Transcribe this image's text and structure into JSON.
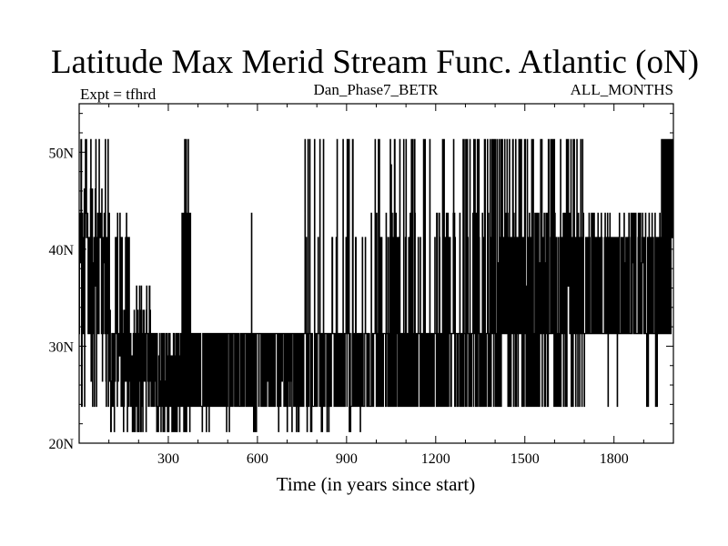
{
  "chart_data": {
    "type": "line",
    "title": "Latitude Max Merid Stream Func. Atlantic (oN)",
    "left_annotation": "Expt = tfhrd",
    "center_annotation": "Dan_Phase7_BETR",
    "right_annotation": "ALL_MONTHS",
    "xlabel": "Time (in years since start)",
    "ylabel": "",
    "xlim": [
      0,
      2000
    ],
    "ylim": [
      20,
      55
    ],
    "x_ticks": [
      300,
      600,
      900,
      1200,
      1500,
      1800
    ],
    "x_tick_labels": [
      "300",
      "600",
      "900",
      "1200",
      "1500",
      "1800"
    ],
    "y_ticks": [
      20,
      30,
      40,
      50
    ],
    "y_tick_labels": [
      "20N",
      "30N",
      "40N",
      "50N"
    ],
    "grid": false,
    "series": [
      {
        "name": "",
        "color": "#000000",
        "levels": [
          21.2,
          23.8,
          26.4,
          29.0,
          31.3,
          33.7,
          36.2,
          38.6,
          41.2,
          43.7,
          46.2,
          48.7,
          51.3
        ],
        "segments": [
          {
            "x_start": 0,
            "x_end": 100,
            "distribution": {
              "41.2": 0.28,
              "31.3": 0.22,
              "51.3": 0.12,
              "43.7": 0.1,
              "46.2": 0.06,
              "38.6": 0.06,
              "36.2": 0.06,
              "26.4": 0.05,
              "23.8": 0.05
            }
          },
          {
            "x_start": 100,
            "x_end": 180,
            "distribution": {
              "31.3": 0.25,
              "26.4": 0.15,
              "23.8": 0.12,
              "21.2": 0.1,
              "33.7": 0.12,
              "41.2": 0.1,
              "43.7": 0.08,
              "29.0": 0.08
            }
          },
          {
            "x_start": 180,
            "x_end": 250,
            "distribution": {
              "31.3": 0.25,
              "23.8": 0.2,
              "26.4": 0.15,
              "21.2": 0.12,
              "33.7": 0.12,
              "36.2": 0.06,
              "29.0": 0.1
            }
          },
          {
            "x_start": 250,
            "x_end": 345,
            "distribution": {
              "31.3": 0.3,
              "23.8": 0.25,
              "21.2": 0.2,
              "26.4": 0.15,
              "29.0": 0.1
            }
          },
          {
            "x_start": 345,
            "x_end": 375,
            "distribution": {
              "31.3": 0.25,
              "43.7": 0.2,
              "51.3": 0.15,
              "21.2": 0.2,
              "23.8": 0.2
            }
          },
          {
            "x_start": 375,
            "x_end": 760,
            "distribution": {
              "31.3": 0.48,
              "23.8": 0.42,
              "21.2": 0.05,
              "26.4": 0.05
            }
          },
          {
            "x_start": 760,
            "x_end": 980,
            "distribution": {
              "31.3": 0.44,
              "23.8": 0.44,
              "41.2": 0.05,
              "51.3": 0.04,
              "21.2": 0.03
            }
          },
          {
            "x_start": 980,
            "x_end": 1380,
            "distribution": {
              "31.3": 0.42,
              "23.8": 0.4,
              "41.2": 0.08,
              "51.3": 0.06,
              "43.7": 0.04
            }
          },
          {
            "x_start": 1380,
            "x_end": 1700,
            "distribution": {
              "31.3": 0.36,
              "23.8": 0.2,
              "41.2": 0.16,
              "51.3": 0.1,
              "43.7": 0.08,
              "38.6": 0.05,
              "36.2": 0.05
            }
          },
          {
            "x_start": 1700,
            "x_end": 1960,
            "distribution": {
              "31.3": 0.55,
              "41.2": 0.25,
              "43.7": 0.1,
              "23.8": 0.05,
              "38.6": 0.05
            }
          },
          {
            "x_start": 1960,
            "x_end": 2000,
            "distribution": {
              "51.3": 0.4,
              "46.2": 0.2,
              "31.3": 0.2,
              "41.2": 0.2
            }
          }
        ],
        "spikes": [
          {
            "x": 360,
            "y": 51.3
          },
          {
            "x": 580,
            "y": 43.7
          },
          {
            "x": 770,
            "y": 51.3
          },
          {
            "x": 810,
            "y": 51.3
          },
          {
            "x": 920,
            "y": 51.3
          },
          {
            "x": 1010,
            "y": 51.3
          },
          {
            "x": 1050,
            "y": 48.7
          },
          {
            "x": 1100,
            "y": 51.3
          },
          {
            "x": 1180,
            "y": 51.3
          },
          {
            "x": 1340,
            "y": 51.3
          },
          {
            "x": 1365,
            "y": 51.3
          },
          {
            "x": 1460,
            "y": 51.3
          },
          {
            "x": 1480,
            "y": 51.3
          },
          {
            "x": 1640,
            "y": 51.3
          },
          {
            "x": 1655,
            "y": 51.3
          },
          {
            "x": 1995,
            "y": 51.3
          },
          {
            "x": 780,
            "y": 21.2
          }
        ]
      }
    ]
  }
}
